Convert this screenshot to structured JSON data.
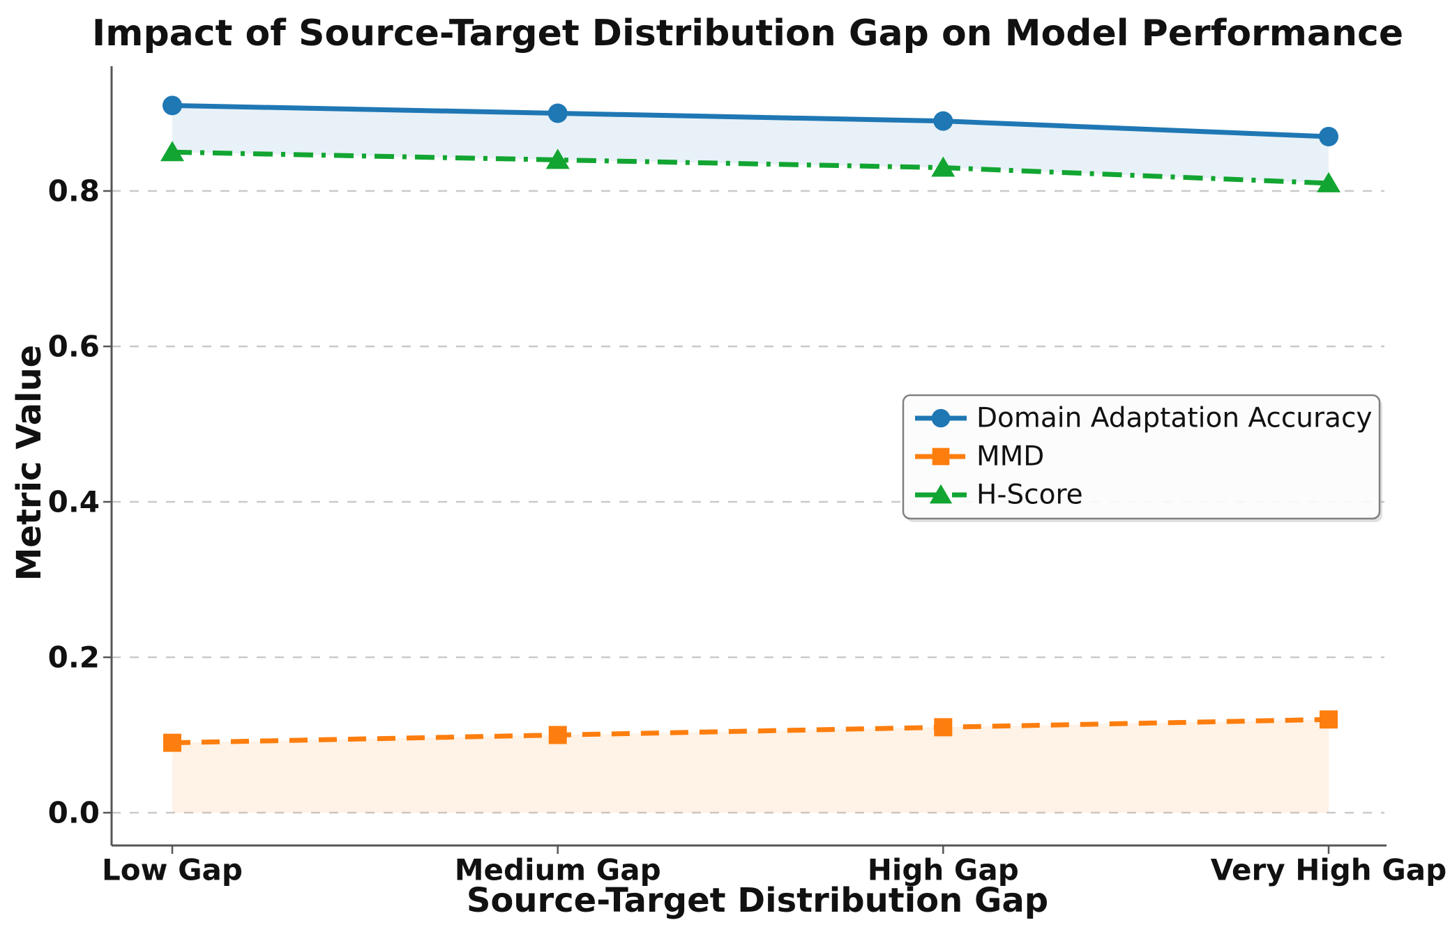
{
  "figure": {
    "background": "#ffffff"
  },
  "chart_data": {
    "type": "line",
    "title": "Impact of Source-Target Distribution Gap on Model Performance",
    "xlabel": "Source-Target Distribution Gap",
    "ylabel": "Metric Value",
    "categories": [
      "Low Gap",
      "Medium Gap",
      "High Gap",
      "Very High Gap"
    ],
    "y_ticks": [
      0.0,
      0.2,
      0.4,
      0.6,
      0.8
    ],
    "y_tick_labels": [
      "0.0",
      "0.2",
      "0.4",
      "0.6",
      "0.8"
    ],
    "ylim": [
      -0.04,
      0.96
    ],
    "grid": "horizontal-dashed",
    "grid_color": "#c9c9c9",
    "spine_color": "#555555",
    "legend_position": "center-right",
    "series": [
      {
        "name": "Domain Adaptation Accuracy",
        "values": [
          0.91,
          0.9,
          0.89,
          0.87
        ],
        "color": "#1f77b4",
        "line_style": "solid",
        "marker": "circle",
        "fill_to": "H-Score",
        "fill_color": "rgba(31,119,180,0.10)"
      },
      {
        "name": "MMD",
        "values": [
          0.09,
          0.1,
          0.11,
          0.12
        ],
        "color": "#fd7e0e",
        "line_style": "dashed",
        "marker": "square",
        "fill_to": "zero",
        "fill_color": "rgba(253,126,14,0.10)"
      },
      {
        "name": "H-Score",
        "values": [
          0.85,
          0.84,
          0.83,
          0.81
        ],
        "color": "#12a532",
        "line_style": "dashdot",
        "marker": "triangle",
        "fill_to": null,
        "fill_color": null
      }
    ]
  }
}
